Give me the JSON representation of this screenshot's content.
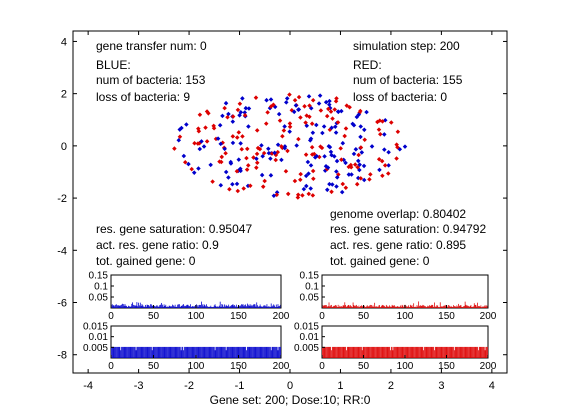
{
  "chart_data": {
    "type": "scatter",
    "xlabel": "Gene set: 200;  Dose:10;  RR:0",
    "xlim": [
      -4.3,
      4.3
    ],
    "ylim": [
      -8.7,
      4.4
    ],
    "xticks": [
      "-4",
      "-3",
      "-2",
      "-1",
      "0",
      "1",
      "2",
      "3",
      "4"
    ],
    "yticks": [
      "4",
      "2",
      "0",
      "-2",
      "-4",
      "-6",
      "-8"
    ],
    "colors": {
      "blue": "#0000cc",
      "red": "#dd0000"
    },
    "annotations": {
      "gene_transfer": "gene transfer num: 0",
      "simulation_step": "simulation step: 200",
      "blue_title": "BLUE:",
      "blue_num": "num of bacteria: 153",
      "blue_loss": "loss of bacteria: 9",
      "red_title": "RED:",
      "red_num": "num of bacteria: 155",
      "red_loss": "loss of bacteria: 0",
      "genome_overlap": "genome overlap: 0.80402",
      "blue_saturation": "res. gene saturation: 0.95047",
      "blue_ratio": "act. res. gene ratio: 0.9",
      "blue_gained": "tot. gained gene: 0",
      "red_saturation": "res. gene saturation: 0.94792",
      "red_ratio": "act. res. gene ratio: 0.895",
      "red_gained": "tot. gained gene: 0"
    },
    "series": [
      {
        "name": "BLUE",
        "count": 153,
        "color": "#0000cc"
      },
      {
        "name": "RED",
        "count": 155,
        "color": "#dd0000"
      }
    ],
    "cloud": {
      "center": [
        0,
        0
      ],
      "radius_x": 2.3,
      "radius_y": 2.0
    },
    "inset_charts": [
      {
        "id": "blue-top",
        "type": "bar",
        "color": "#0000cc",
        "xlim": [
          0,
          200
        ],
        "ylim": [
          0,
          0.15
        ],
        "yticks": [
          "0.15",
          "0.1",
          "0.05"
        ],
        "xticks": [
          "0",
          "50",
          "100",
          "150",
          "200"
        ],
        "base": 0.015,
        "peak": 0.03
      },
      {
        "id": "red-top",
        "type": "bar",
        "color": "#dd0000",
        "xlim": [
          0,
          200
        ],
        "ylim": [
          0,
          0.15
        ],
        "yticks": [
          "0.15",
          "0.1",
          "0.05"
        ],
        "xticks": [
          "0",
          "50",
          "100",
          "150",
          "200"
        ],
        "base": 0.012,
        "peak": 0.03
      },
      {
        "id": "blue-bottom",
        "type": "bar",
        "color": "#0000cc",
        "xlim": [
          0,
          200
        ],
        "ylim": [
          0,
          0.015
        ],
        "yticks": [
          "0.015",
          "0.01",
          "0.005"
        ],
        "xticks": [
          "0",
          "50",
          "100",
          "150",
          "200"
        ],
        "base": 0.0052,
        "peak": 0.0052
      },
      {
        "id": "red-bottom",
        "type": "bar",
        "color": "#dd0000",
        "xlim": [
          0,
          200
        ],
        "ylim": [
          0,
          0.015
        ],
        "yticks": [
          "0.015",
          "0.01",
          "0.005"
        ],
        "xticks": [
          "0",
          "50",
          "100",
          "150",
          "200"
        ],
        "base": 0.0052,
        "peak": 0.0052
      }
    ]
  }
}
